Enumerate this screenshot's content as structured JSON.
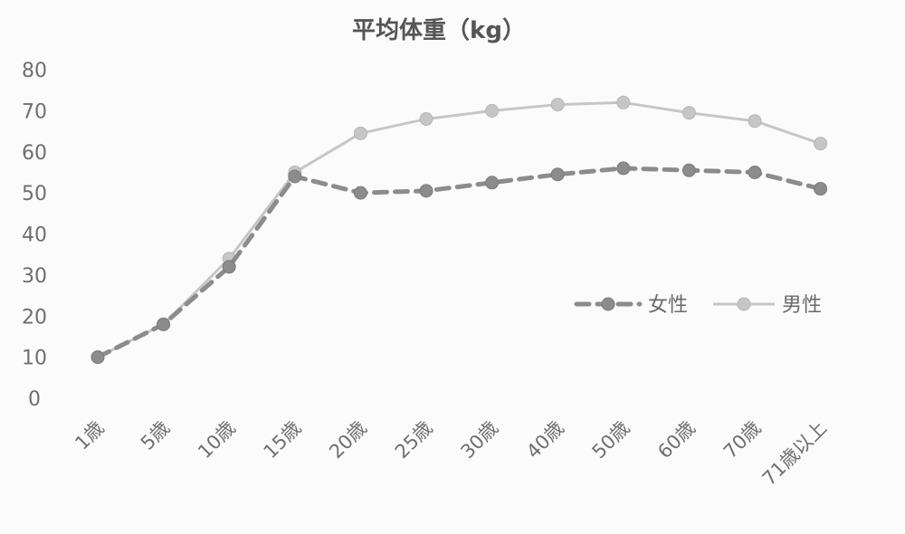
{
  "chart_data": {
    "type": "line",
    "title": "平均体重（kg）",
    "xlabel": "",
    "ylabel": "",
    "categories": [
      "1歳",
      "5歳",
      "10歳",
      "15歳",
      "20歳",
      "25歳",
      "30歳",
      "40歳",
      "50歳",
      "60歳",
      "70歳",
      "71歳以上"
    ],
    "ylim": [
      0,
      80
    ],
    "yticks": [
      0,
      10,
      20,
      30,
      40,
      50,
      60,
      70,
      80
    ],
    "grid": false,
    "legend_position": "right",
    "series": [
      {
        "name": "女性",
        "style": "dashed",
        "color": "#8c8c8c",
        "values": [
          10,
          18,
          32,
          54,
          50,
          50.5,
          52.5,
          54.5,
          56,
          55.5,
          55,
          51
        ]
      },
      {
        "name": "男性",
        "style": "solid",
        "color": "#c6c6c6",
        "values": [
          10,
          18,
          34,
          55,
          64.5,
          68,
          70,
          71.5,
          72,
          69.5,
          67.5,
          62
        ]
      }
    ]
  }
}
